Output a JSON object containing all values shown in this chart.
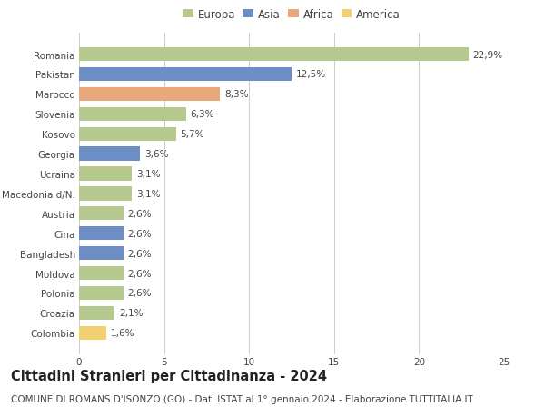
{
  "countries": [
    "Romania",
    "Pakistan",
    "Marocco",
    "Slovenia",
    "Kosovo",
    "Georgia",
    "Ucraina",
    "Macedonia d/N.",
    "Austria",
    "Cina",
    "Bangladesh",
    "Moldova",
    "Polonia",
    "Croazia",
    "Colombia"
  ],
  "values": [
    22.9,
    12.5,
    8.3,
    6.3,
    5.7,
    3.6,
    3.1,
    3.1,
    2.6,
    2.6,
    2.6,
    2.6,
    2.6,
    2.1,
    1.6
  ],
  "labels": [
    "22,9%",
    "12,5%",
    "8,3%",
    "6,3%",
    "5,7%",
    "3,6%",
    "3,1%",
    "3,1%",
    "2,6%",
    "2,6%",
    "2,6%",
    "2,6%",
    "2,6%",
    "2,1%",
    "1,6%"
  ],
  "continents": [
    "Europa",
    "Asia",
    "Africa",
    "Europa",
    "Europa",
    "Asia",
    "Europa",
    "Europa",
    "Europa",
    "Asia",
    "Asia",
    "Europa",
    "Europa",
    "Europa",
    "America"
  ],
  "continent_colors": {
    "Europa": "#b5c98e",
    "Asia": "#6d8ec4",
    "Africa": "#e8a87c",
    "America": "#f0d070"
  },
  "legend_order": [
    "Europa",
    "Asia",
    "Africa",
    "America"
  ],
  "xlim": [
    0,
    25
  ],
  "xticks": [
    0,
    5,
    10,
    15,
    20,
    25
  ],
  "title": "Cittadini Stranieri per Cittadinanza - 2024",
  "subtitle": "COMUNE DI ROMANS D'ISONZO (GO) - Dati ISTAT al 1° gennaio 2024 - Elaborazione TUTTITALIA.IT",
  "title_fontsize": 10.5,
  "subtitle_fontsize": 7.5,
  "background_color": "#ffffff",
  "grid_color": "#cccccc",
  "label_fontsize": 7.5,
  "tick_fontsize": 7.5
}
